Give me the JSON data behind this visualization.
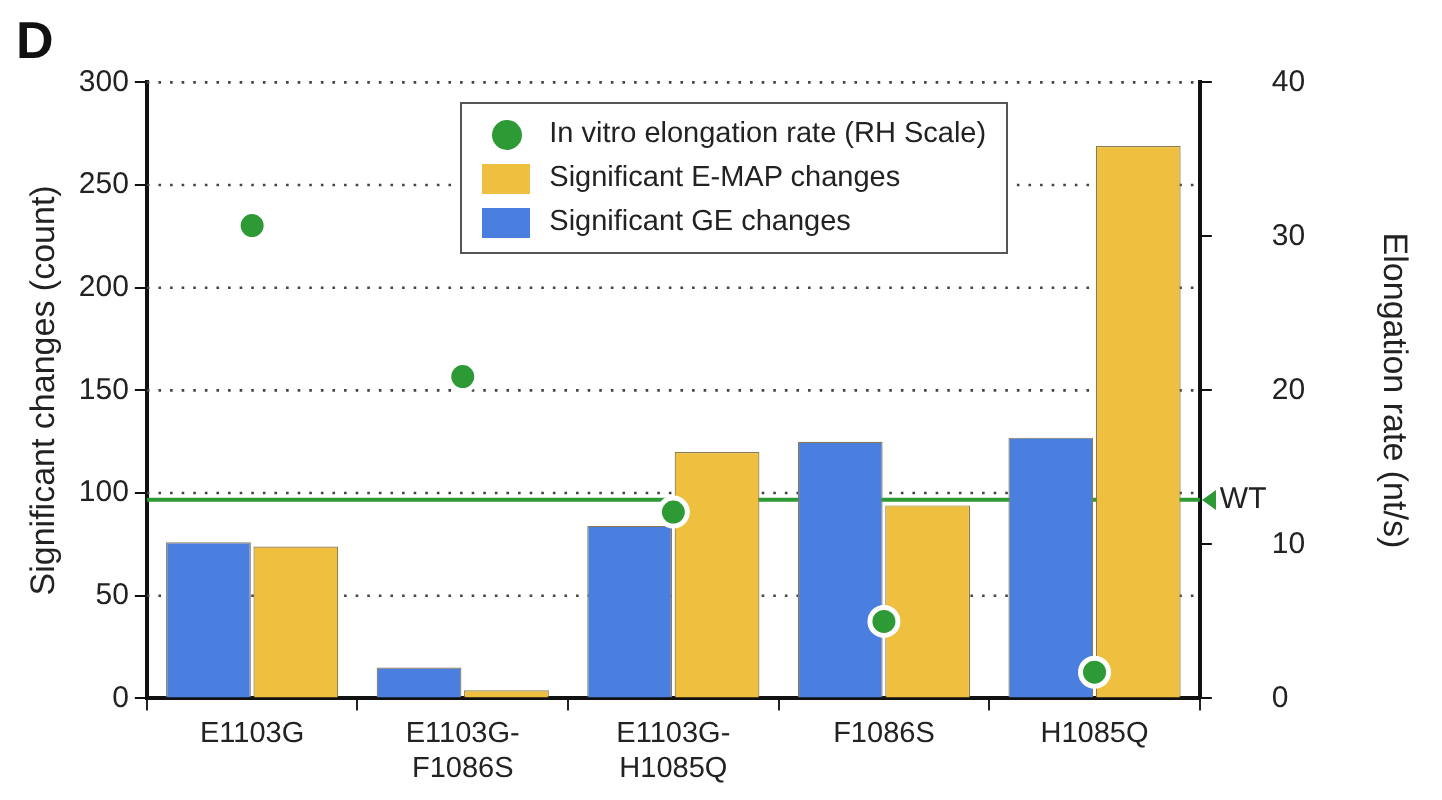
{
  "chart_data": {
    "type": "bar",
    "title": "D",
    "categories": [
      "E1103G",
      "E1103G-F1086S",
      "E1103G-H1085Q",
      "F1086S",
      "H1085Q"
    ],
    "series": [
      {
        "name": "Significant GE changes",
        "color": "#4a7fe0",
        "values": [
          76,
          15,
          84,
          125,
          127
        ]
      },
      {
        "name": "Significant E-MAP changes",
        "color": "#efc03f",
        "values": [
          74,
          4,
          120,
          94,
          269
        ]
      },
      {
        "name": "In vitro elongation rate (RH Scale)",
        "type": "scatter",
        "axis": "y2",
        "color": "#2e9a35",
        "x": [
          "E1103G",
          "E1103G-F1086S",
          "E1103G-H1085Q",
          "F1086S",
          "H1085Q"
        ],
        "values": [
          30.7,
          20.9,
          12.1,
          5.0,
          1.7
        ]
      }
    ],
    "ylabel": "Significant changes (count)",
    "y2label": "Elongation rate (nt/s)",
    "ylim": [
      0,
      300
    ],
    "yticks": [
      0,
      50,
      100,
      150,
      200,
      250,
      300
    ],
    "y2lim": [
      0,
      40
    ],
    "y2ticks": [
      0,
      10,
      20,
      30,
      40
    ],
    "ref_lines": [
      {
        "axis": "y2",
        "value": 12.9,
        "label": "WT",
        "color": "#2e9a35"
      }
    ],
    "grid": "y",
    "legend": "top",
    "marker": "circle"
  }
}
